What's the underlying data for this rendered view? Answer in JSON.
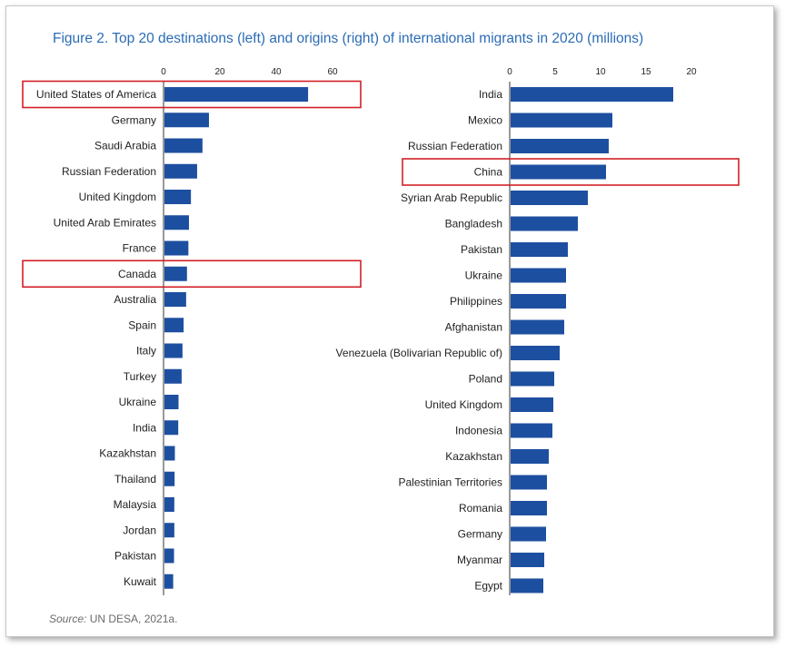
{
  "page": {
    "title": "Figure 2. Top 20 destinations (left) and origins (right) of international migrants in 2020 (millions)",
    "source_label": "Source:",
    "source_text": " UN DESA, 2021a."
  },
  "colors": {
    "bar": "#1d4fa0",
    "highlight": "#d21f26",
    "title": "#2b6cb5"
  },
  "chart_data": [
    {
      "type": "bar",
      "orientation": "horizontal",
      "title": "",
      "xlim": [
        0,
        70
      ],
      "ticks": [
        0,
        20,
        40,
        60
      ],
      "categories": [
        "United States of America",
        "Germany",
        "Saudi Arabia",
        "Russian Federation",
        "United Kingdom",
        "United Arab Emirates",
        "France",
        "Canada",
        "Australia",
        "Spain",
        "Italy",
        "Turkey",
        "Ukraine",
        "India",
        "Kazakhstan",
        "Thailand",
        "Malaysia",
        "Jordan",
        "Pakistan",
        "Kuwait"
      ],
      "values": [
        51,
        15.8,
        13.5,
        11.6,
        9.4,
        8.7,
        8.5,
        8.0,
        7.7,
        6.8,
        6.4,
        6.1,
        5.0,
        4.9,
        3.7,
        3.6,
        3.5,
        3.5,
        3.4,
        3.1
      ],
      "highlighted": [
        "United States of America",
        "Canada"
      ]
    },
    {
      "type": "bar",
      "orientation": "horizontal",
      "title": "",
      "xlim": [
        0,
        20
      ],
      "ticks": [
        0,
        5,
        10,
        15,
        20
      ],
      "categories": [
        "India",
        "Mexico",
        "Russian Federation",
        "China",
        "Syrian Arab Republic",
        "Bangladesh",
        "Pakistan",
        "Ukraine",
        "Philippines",
        "Afghanistan",
        "Venezuela (Bolivarian Republic of)",
        "Poland",
        "United Kingdom",
        "Indonesia",
        "Kazakhstan",
        "Palestinian Territories",
        "Romania",
        "Germany",
        "Myanmar",
        "Egypt"
      ],
      "values": [
        17.9,
        11.2,
        10.8,
        10.5,
        8.5,
        7.4,
        6.3,
        6.1,
        6.1,
        5.9,
        5.4,
        4.8,
        4.7,
        4.6,
        4.2,
        4.0,
        4.0,
        3.9,
        3.7,
        3.6
      ],
      "highlighted": [
        "China"
      ]
    }
  ]
}
